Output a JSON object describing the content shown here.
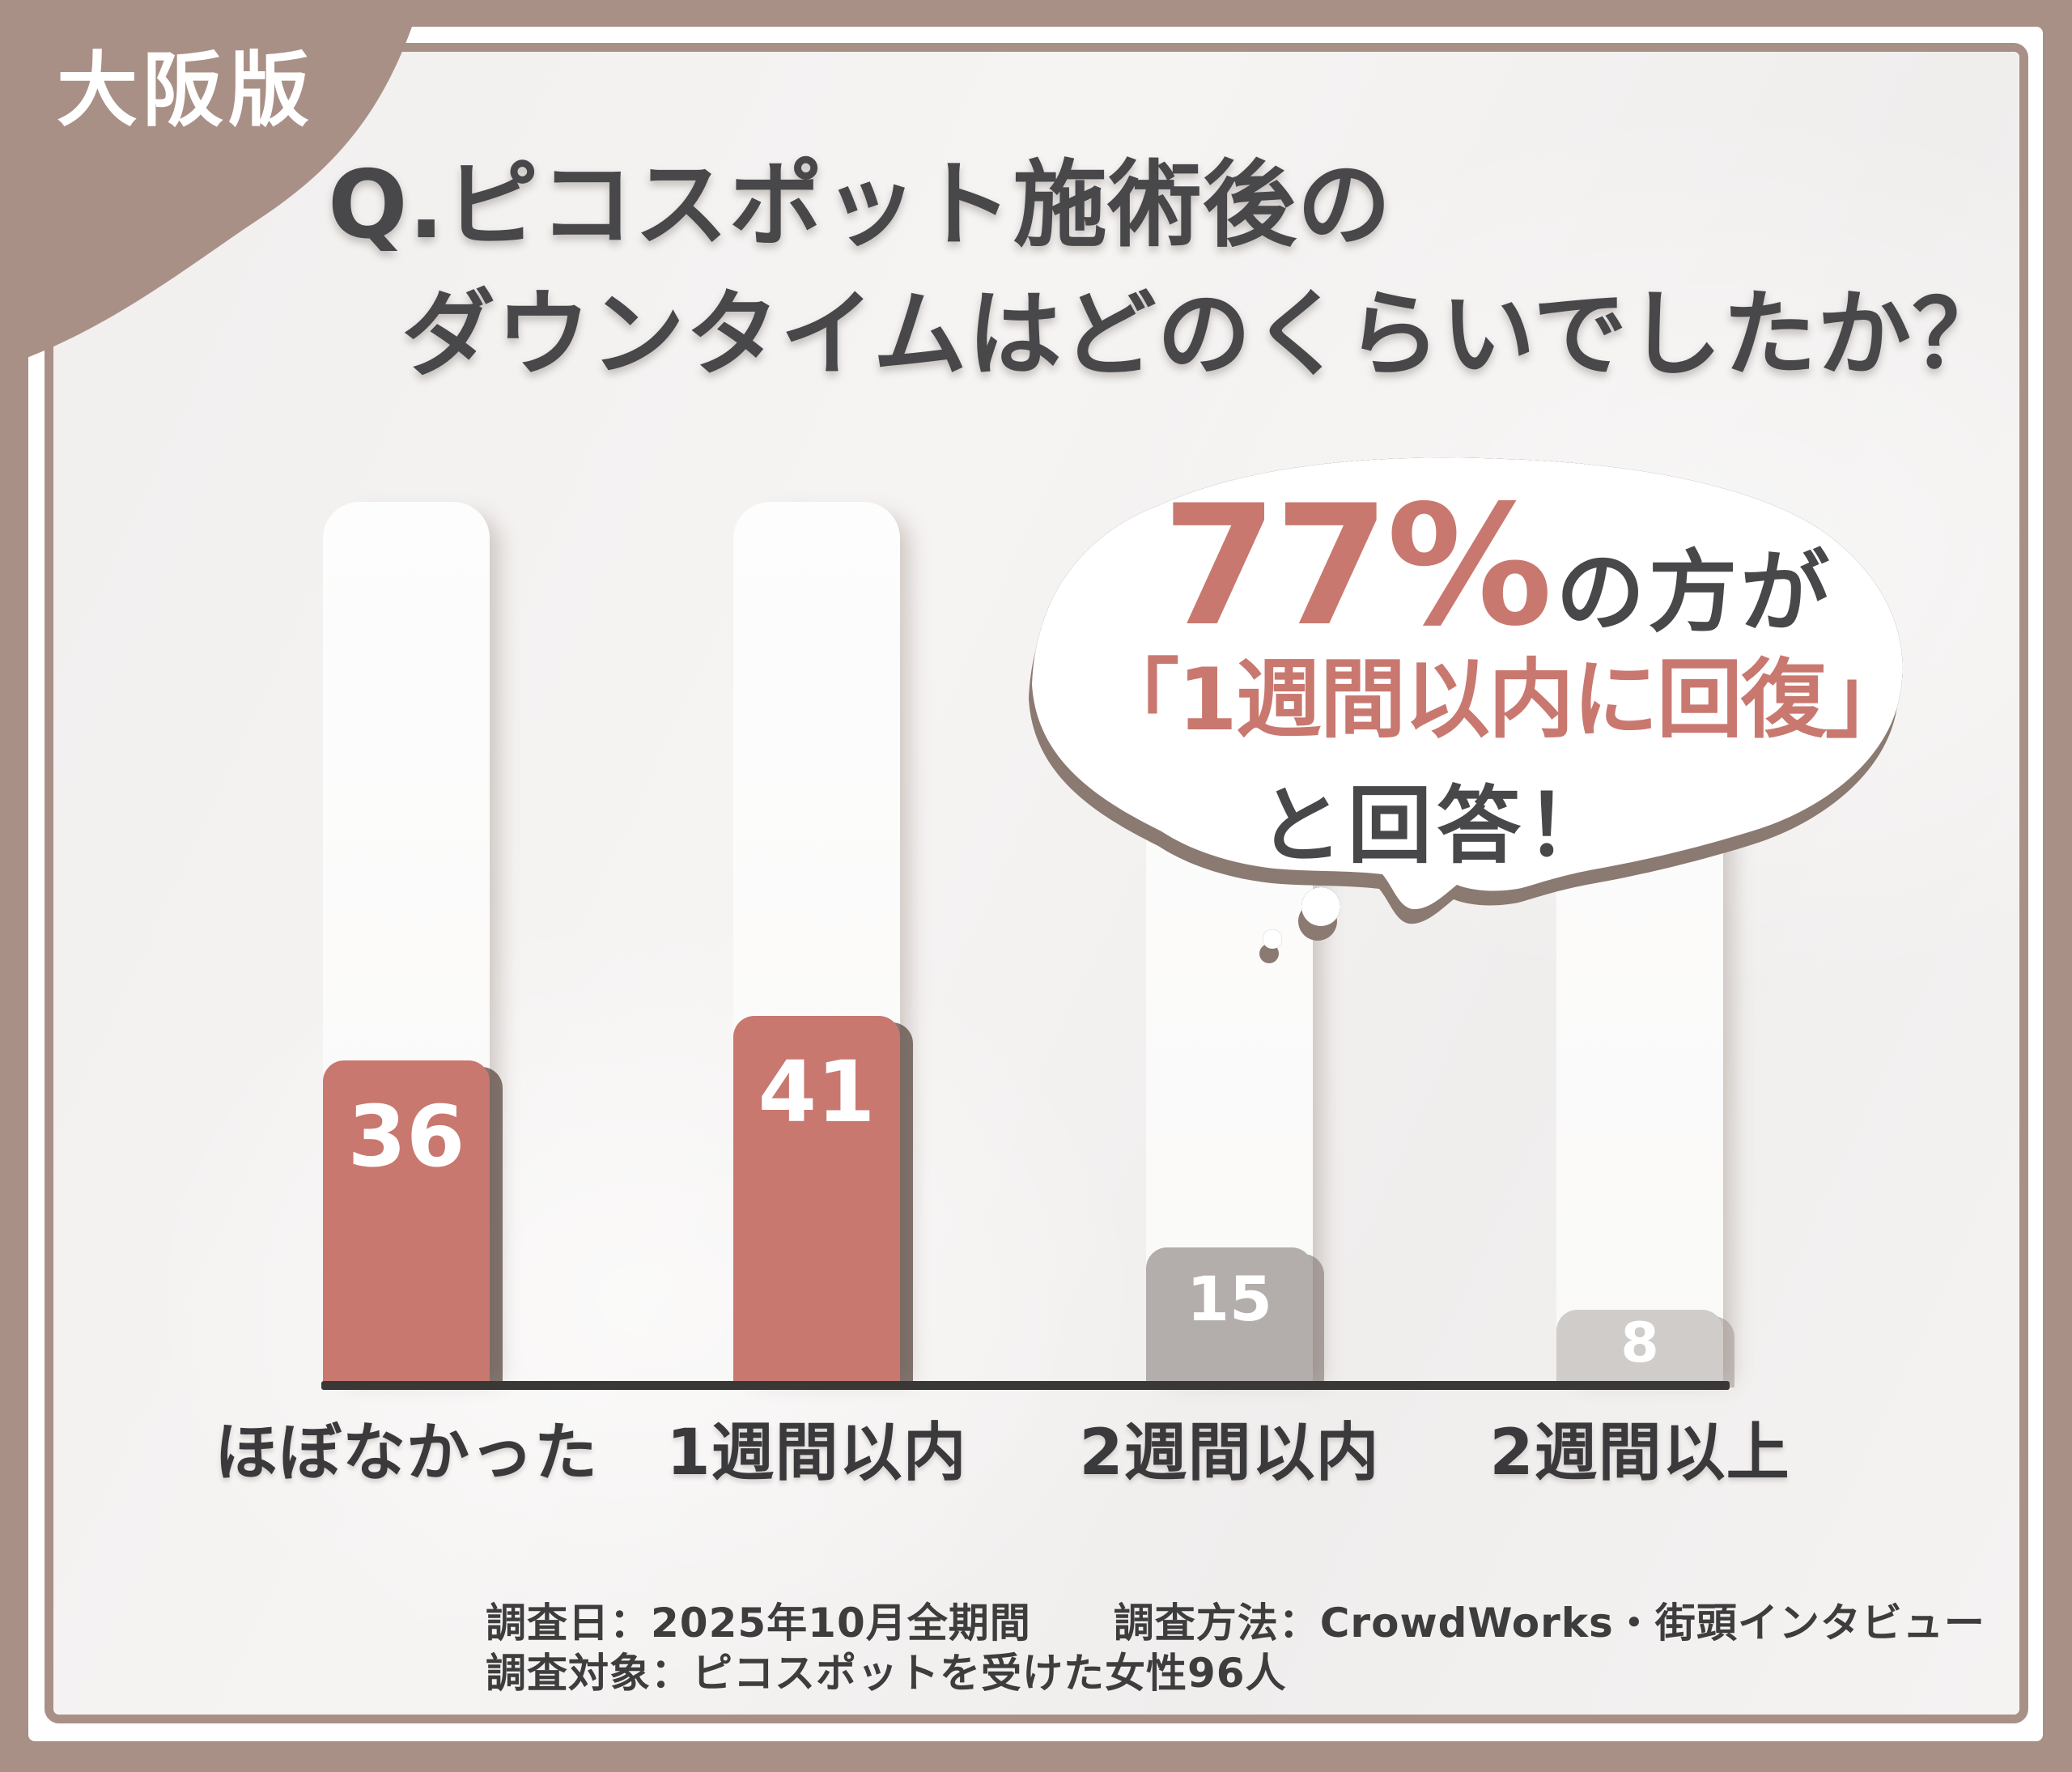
{
  "badge": {
    "label": "大阪版"
  },
  "title": {
    "line1": "Q.ピコスポット施術後の",
    "line2": "ダウンタイムはどのくらいでしたか？"
  },
  "bubble": {
    "percent": "77%",
    "percent_suffix": "の方が",
    "line2": "「1週間以内に回復」",
    "line3": "と回答！"
  },
  "chart_data": {
    "type": "bar",
    "categories": [
      "ほぼなかった",
      "1週間以内",
      "2週間以内",
      "2週間以上"
    ],
    "values": [
      36,
      41,
      15,
      8
    ],
    "bar_colors": [
      "#c9786f",
      "#c9786f",
      "#b3aeac",
      "#cfccca"
    ],
    "value_label_color": "#ffffff",
    "title": "Q.ピコスポット施術後のダウンタイムはどのくらいでしたか？",
    "annotation": "77%の方が「1週間以内に回復」と回答！",
    "xlabel": "",
    "ylabel": "",
    "grid": false,
    "legend": false
  },
  "footer": {
    "line1": "調査日：2025年10月全期間　　調査方法：CrowdWorks・街頭インタビュー",
    "line2": "調査対象：ピコスポットを受けた女性96人"
  },
  "colors": {
    "frame": "#a99086",
    "rose": "#c9786f",
    "dark": "#48474a",
    "axis": "#3a3837",
    "label": "#3a393b",
    "footer": "#3e3d3d",
    "bubble-shadow": "#8b7a71"
  }
}
